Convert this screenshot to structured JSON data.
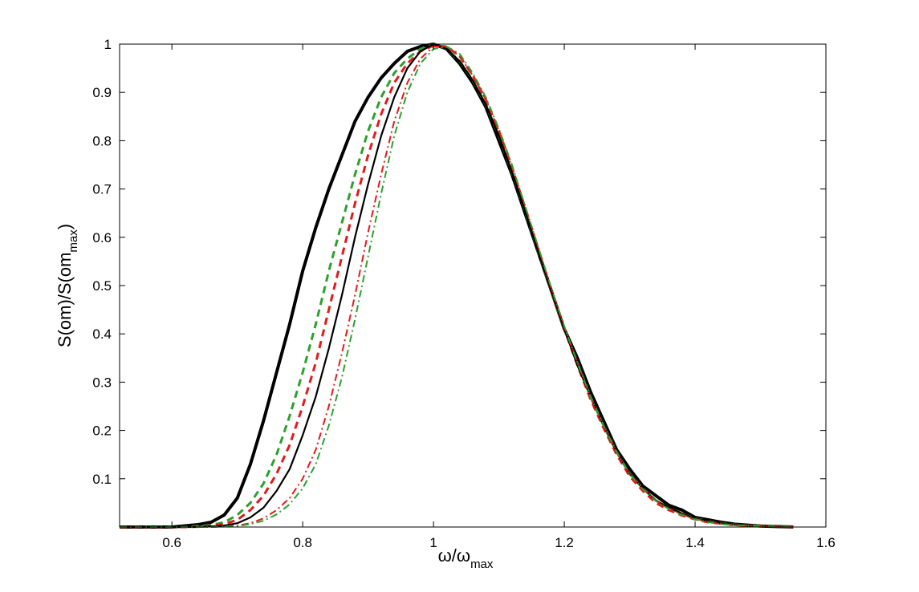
{
  "chart_data": {
    "type": "line",
    "title": "",
    "xlabel": {
      "main": "ω/ω",
      "sub": "max"
    },
    "ylabel": {
      "main": "S(om)/S(om",
      "sub": "max",
      "close": ")"
    },
    "xlim": [
      0.52,
      1.6
    ],
    "ylim": [
      0,
      1
    ],
    "xticks": [
      0.6,
      0.8,
      1,
      1.2,
      1.4,
      1.6
    ],
    "xtick_labels": [
      "0.6",
      "0.8",
      "1",
      "1.2",
      "1.4",
      "1.6"
    ],
    "yticks": [
      0.1,
      0.2,
      0.3,
      0.4,
      0.5,
      0.6,
      0.7,
      0.8,
      0.9,
      1
    ],
    "ytick_labels": [
      "0.1",
      "0.2",
      "0.3",
      "0.4",
      "0.5",
      "0.6",
      "0.7",
      "0.8",
      "0.9",
      "1"
    ],
    "grid": false,
    "legend": "none",
    "series": [
      {
        "color": "#000000",
        "style": "solid-thick",
        "x": [
          0.52,
          0.6,
          0.64,
          0.66,
          0.68,
          0.7,
          0.72,
          0.74,
          0.76,
          0.78,
          0.8,
          0.82,
          0.84,
          0.86,
          0.88,
          0.9,
          0.92,
          0.94,
          0.96,
          0.98,
          1.0,
          1.02,
          1.04,
          1.06,
          1.08,
          1.1,
          1.12,
          1.14,
          1.16,
          1.18,
          1.2,
          1.22,
          1.24,
          1.26,
          1.28,
          1.3,
          1.32,
          1.34,
          1.36,
          1.38,
          1.4,
          1.42,
          1.44,
          1.46,
          1.48,
          1.5,
          1.55
        ],
        "y": [
          0,
          0,
          0.005,
          0.01,
          0.025,
          0.06,
          0.13,
          0.22,
          0.32,
          0.42,
          0.53,
          0.62,
          0.7,
          0.77,
          0.84,
          0.89,
          0.93,
          0.96,
          0.985,
          0.995,
          1.0,
          0.99,
          0.96,
          0.92,
          0.87,
          0.8,
          0.73,
          0.65,
          0.57,
          0.49,
          0.41,
          0.35,
          0.28,
          0.22,
          0.16,
          0.12,
          0.085,
          0.065,
          0.045,
          0.035,
          0.02,
          0.015,
          0.01,
          0.006,
          0.004,
          0.002,
          0
        ]
      },
      {
        "color": "#2ca02c",
        "style": "dashed",
        "x": [
          0.52,
          0.62,
          0.66,
          0.68,
          0.7,
          0.72,
          0.74,
          0.76,
          0.78,
          0.8,
          0.82,
          0.84,
          0.86,
          0.88,
          0.9,
          0.92,
          0.94,
          0.96,
          0.98,
          1.0,
          1.02,
          1.04,
          1.06,
          1.08,
          1.1,
          1.12,
          1.14,
          1.16,
          1.18,
          1.2,
          1.22,
          1.24,
          1.26,
          1.28,
          1.3,
          1.32,
          1.34,
          1.36,
          1.38,
          1.4,
          1.42,
          1.44,
          1.46,
          1.48,
          1.5,
          1.55
        ],
        "y": [
          0,
          0,
          0.004,
          0.01,
          0.025,
          0.05,
          0.09,
          0.15,
          0.23,
          0.32,
          0.42,
          0.53,
          0.63,
          0.73,
          0.82,
          0.89,
          0.94,
          0.97,
          0.99,
          1.0,
          0.99,
          0.965,
          0.925,
          0.875,
          0.81,
          0.735,
          0.655,
          0.57,
          0.49,
          0.41,
          0.34,
          0.27,
          0.21,
          0.155,
          0.11,
          0.08,
          0.055,
          0.04,
          0.028,
          0.018,
          0.012,
          0.008,
          0.005,
          0.003,
          0.002,
          0
        ]
      },
      {
        "color": "#e31a1c",
        "style": "dashed",
        "x": [
          0.52,
          0.62,
          0.66,
          0.68,
          0.7,
          0.72,
          0.74,
          0.76,
          0.78,
          0.8,
          0.82,
          0.84,
          0.86,
          0.88,
          0.9,
          0.92,
          0.94,
          0.96,
          0.98,
          1.0,
          1.02,
          1.04,
          1.06,
          1.08,
          1.1,
          1.12,
          1.14,
          1.16,
          1.18,
          1.2,
          1.22,
          1.24,
          1.26,
          1.28,
          1.3,
          1.32,
          1.34,
          1.36,
          1.38,
          1.4,
          1.42,
          1.44,
          1.46,
          1.48,
          1.5,
          1.55
        ],
        "y": [
          0,
          0,
          0.002,
          0.006,
          0.015,
          0.035,
          0.065,
          0.11,
          0.17,
          0.25,
          0.34,
          0.45,
          0.56,
          0.67,
          0.77,
          0.855,
          0.92,
          0.96,
          0.985,
          0.997,
          0.995,
          0.975,
          0.935,
          0.885,
          0.82,
          0.745,
          0.66,
          0.575,
          0.49,
          0.41,
          0.335,
          0.265,
          0.205,
          0.15,
          0.105,
          0.075,
          0.05,
          0.035,
          0.024,
          0.016,
          0.01,
          0.007,
          0.004,
          0.003,
          0.002,
          0
        ]
      },
      {
        "color": "#000000",
        "style": "solid-thin",
        "x": [
          0.52,
          0.64,
          0.68,
          0.7,
          0.72,
          0.74,
          0.76,
          0.78,
          0.8,
          0.82,
          0.84,
          0.86,
          0.88,
          0.9,
          0.92,
          0.94,
          0.96,
          0.98,
          1.0,
          1.02,
          1.04,
          1.06,
          1.08,
          1.1,
          1.12,
          1.14,
          1.16,
          1.18,
          1.2,
          1.22,
          1.24,
          1.26,
          1.28,
          1.3,
          1.32,
          1.34,
          1.36,
          1.38,
          1.4,
          1.42,
          1.44,
          1.46,
          1.48,
          1.5,
          1.55
        ],
        "y": [
          0,
          0,
          0.003,
          0.008,
          0.02,
          0.04,
          0.075,
          0.12,
          0.19,
          0.27,
          0.37,
          0.48,
          0.6,
          0.71,
          0.81,
          0.89,
          0.95,
          0.985,
          1.0,
          0.99,
          0.965,
          0.925,
          0.875,
          0.81,
          0.735,
          0.655,
          0.57,
          0.49,
          0.41,
          0.335,
          0.27,
          0.21,
          0.155,
          0.11,
          0.08,
          0.055,
          0.04,
          0.028,
          0.018,
          0.012,
          0.008,
          0.005,
          0.003,
          0.002,
          0
        ]
      },
      {
        "color": "#e31a1c",
        "style": "dashdot",
        "x": [
          0.52,
          0.66,
          0.7,
          0.72,
          0.74,
          0.76,
          0.78,
          0.8,
          0.82,
          0.84,
          0.86,
          0.88,
          0.9,
          0.92,
          0.94,
          0.96,
          0.98,
          1.0,
          1.02,
          1.04,
          1.06,
          1.08,
          1.1,
          1.12,
          1.14,
          1.16,
          1.18,
          1.2,
          1.22,
          1.24,
          1.26,
          1.28,
          1.3,
          1.32,
          1.34,
          1.36,
          1.38,
          1.4,
          1.42,
          1.44,
          1.46,
          1.48,
          1.5,
          1.55
        ],
        "y": [
          0,
          0,
          0.003,
          0.008,
          0.018,
          0.035,
          0.06,
          0.1,
          0.16,
          0.25,
          0.36,
          0.48,
          0.61,
          0.73,
          0.84,
          0.92,
          0.97,
          0.995,
          0.995,
          0.975,
          0.935,
          0.885,
          0.82,
          0.745,
          0.665,
          0.58,
          0.495,
          0.415,
          0.34,
          0.27,
          0.21,
          0.155,
          0.11,
          0.08,
          0.055,
          0.038,
          0.026,
          0.017,
          0.011,
          0.007,
          0.004,
          0.003,
          0.002,
          0
        ]
      },
      {
        "color": "#2ca02c",
        "style": "dashdot",
        "x": [
          0.52,
          0.66,
          0.7,
          0.72,
          0.74,
          0.76,
          0.78,
          0.8,
          0.82,
          0.84,
          0.86,
          0.88,
          0.9,
          0.92,
          0.94,
          0.96,
          0.98,
          1.0,
          1.02,
          1.04,
          1.06,
          1.08,
          1.1,
          1.12,
          1.14,
          1.16,
          1.18,
          1.2,
          1.22,
          1.24,
          1.26,
          1.28,
          1.3,
          1.32,
          1.34,
          1.36,
          1.38,
          1.4,
          1.42,
          1.44,
          1.46,
          1.48,
          1.5,
          1.55
        ],
        "y": [
          0,
          0,
          0.002,
          0.006,
          0.013,
          0.026,
          0.047,
          0.08,
          0.13,
          0.21,
          0.31,
          0.43,
          0.56,
          0.69,
          0.81,
          0.9,
          0.96,
          0.99,
          0.995,
          0.98,
          0.94,
          0.89,
          0.825,
          0.75,
          0.665,
          0.58,
          0.495,
          0.415,
          0.34,
          0.27,
          0.21,
          0.155,
          0.11,
          0.078,
          0.054,
          0.037,
          0.025,
          0.016,
          0.01,
          0.006,
          0.004,
          0.003,
          0.002,
          0
        ]
      }
    ]
  }
}
